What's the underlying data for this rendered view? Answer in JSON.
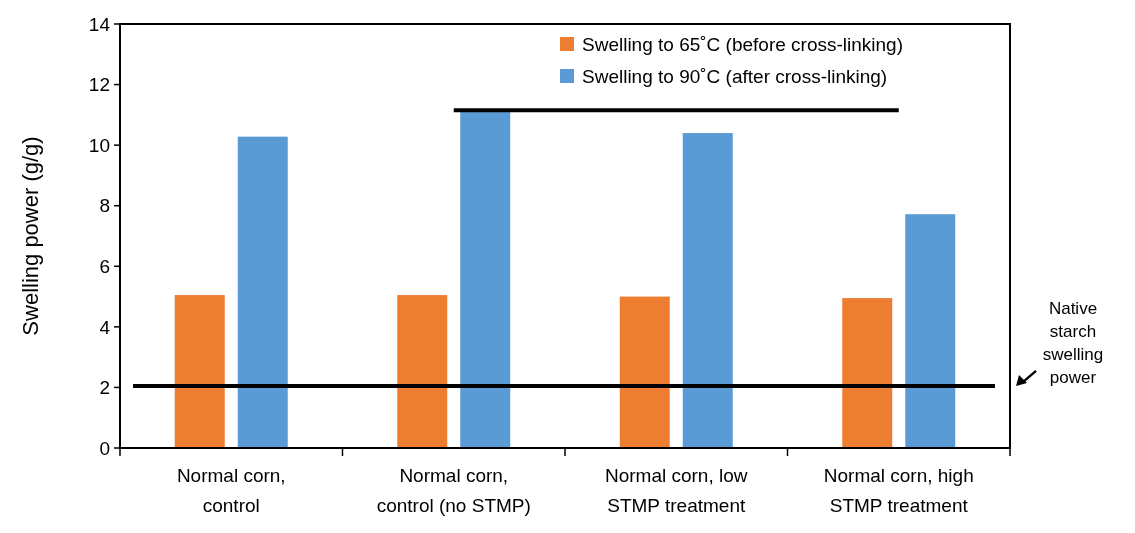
{
  "chart_data": {
    "type": "bar",
    "ylabel": "Swelling power (g/g)",
    "categories": [
      "Normal corn, control",
      "Normal corn, control (no STMP)",
      "Normal corn, low STMP treatment",
      "Normal corn, high STMP treatment"
    ],
    "series": [
      {
        "name": "Swelling to 65˚C (before cross-linking)",
        "color": "#ed7d31",
        "values": [
          5.05,
          5.05,
          5.0,
          4.95
        ]
      },
      {
        "name": "Swelling to 90˚C (after cross-linking)",
        "color": "#5b9bd5",
        "values": [
          10.28,
          11.15,
          10.4,
          7.72
        ]
      },
      {
        "type": "line",
        "color": "#000000",
        "values": [
          null,
          11.15,
          11.15,
          11.15
        ]
      }
    ],
    "ylim": [
      0,
      14
    ],
    "yticks": [
      0,
      2,
      4,
      6,
      8,
      10,
      12,
      14
    ],
    "grid": false,
    "legend": "top right",
    "ref_lines": [
      {
        "axis": "y",
        "value": 2.05,
        "label": "Native starch swelling power",
        "color": "#000000"
      }
    ]
  }
}
